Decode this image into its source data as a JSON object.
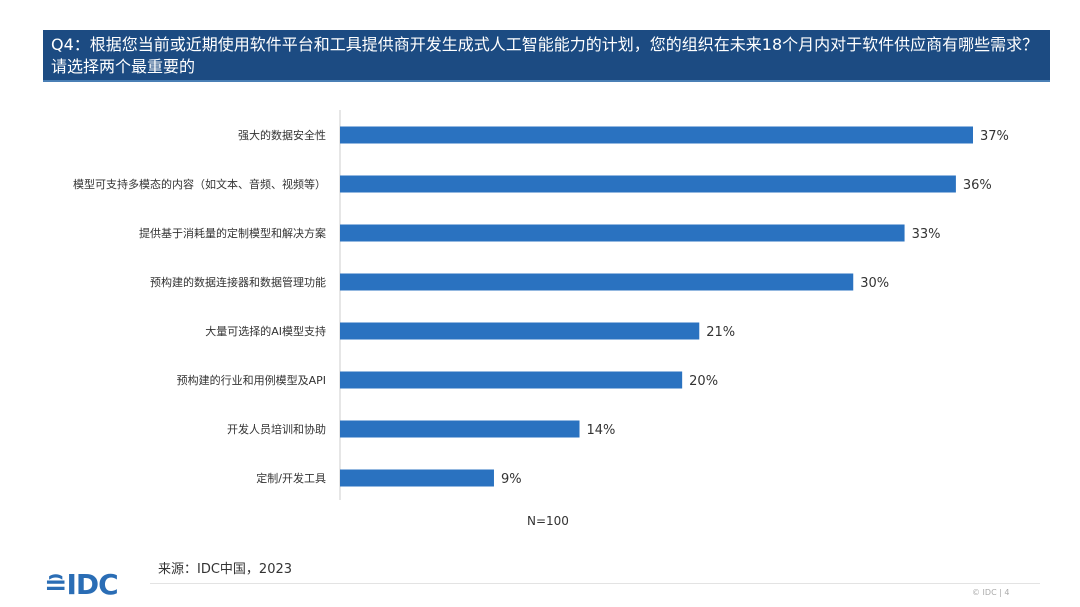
{
  "header": {
    "title": "Q4：根据您当前或近期使用软件平台和工具提供商开发生成式人工智能能力的计划，您的组织在未来18个月内对于软件供应商有哪些需求？请选择两个最重要的"
  },
  "chart_data": {
    "type": "bar",
    "orientation": "horizontal",
    "categories": [
      "强大的数据安全性",
      "模型可支持多模态的内容（如文本、音频、视频等）",
      "提供基于消耗量的定制模型和解决方案",
      "预构建的数据连接器和数据管理功能",
      "大量可选择的AI模型支持",
      "预构建的行业和用例模型及API",
      "开发人员培训和协助",
      "定制/开发工具"
    ],
    "values": [
      37,
      36,
      33,
      30,
      21,
      20,
      14,
      9
    ],
    "value_labels": [
      "37%",
      "36%",
      "33%",
      "30%",
      "21%",
      "20%",
      "14%",
      "9%"
    ],
    "unit": "%",
    "bar_color": "#2a72c0",
    "grid": false,
    "note": "N=100"
  },
  "footer": {
    "source": "来源：IDC中国，2023",
    "logo": "IDC",
    "copyright": "© IDC |  4"
  }
}
